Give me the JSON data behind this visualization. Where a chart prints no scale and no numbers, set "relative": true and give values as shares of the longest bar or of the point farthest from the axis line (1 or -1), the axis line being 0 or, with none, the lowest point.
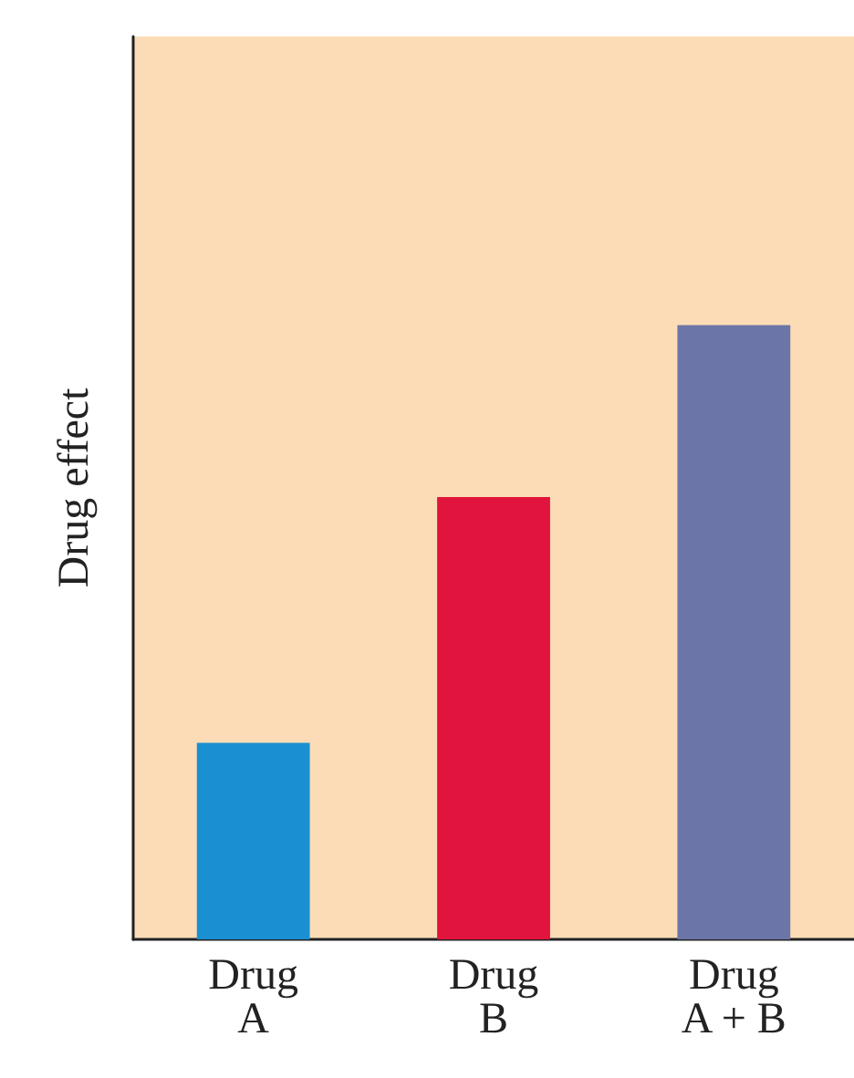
{
  "chart_data": {
    "type": "bar",
    "ylabel": "Drug effect",
    "categories": [
      "Drug A",
      "Drug B",
      "Drug A + B"
    ],
    "values": [
      0.32,
      0.72,
      1
    ],
    "colors": [
      "#1a8fd1",
      "#e0143c",
      "#6b75a8"
    ],
    "relative": true,
    "grid": false
  }
}
